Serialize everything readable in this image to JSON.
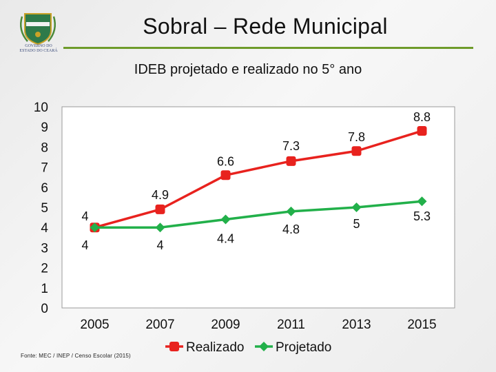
{
  "header": {
    "title": "Sobral – Rede Municipal",
    "logo_caption_line1": "GOVERNO DO",
    "logo_caption_line2": "ESTADO DO CEARÁ"
  },
  "footer": {
    "source": "Fonte: MEC / INEP / Censo Escolar (2015)"
  },
  "colors": {
    "realizado": "#e8221e",
    "projetado": "#22b04a",
    "accent_rule": "#6e9b2a"
  },
  "chart_data": {
    "type": "line",
    "title": "IDEB projetado e realizado no 5° ano",
    "xlabel": "",
    "ylabel": "",
    "categories": [
      "2005",
      "2007",
      "2009",
      "2011",
      "2013",
      "2015"
    ],
    "ylim": [
      0,
      10
    ],
    "yticks": [
      "0",
      "1",
      "2",
      "3",
      "4",
      "5",
      "6",
      "7",
      "8",
      "9",
      "10"
    ],
    "legend_position": "bottom",
    "series": [
      {
        "name": "Realizado",
        "values": [
          4,
          4.9,
          6.6,
          7.3,
          7.8,
          8.8
        ],
        "labels": [
          "4",
          "4.9",
          "6.6",
          "7.3",
          "7.8",
          "8.8"
        ],
        "color": "#e8221e"
      },
      {
        "name": "Projetado",
        "values": [
          4,
          4,
          4.4,
          4.8,
          5,
          5.3
        ],
        "labels": [
          "4",
          "4",
          "4.4",
          "4.8",
          "5",
          "5.3"
        ],
        "color": "#22b04a"
      }
    ]
  }
}
